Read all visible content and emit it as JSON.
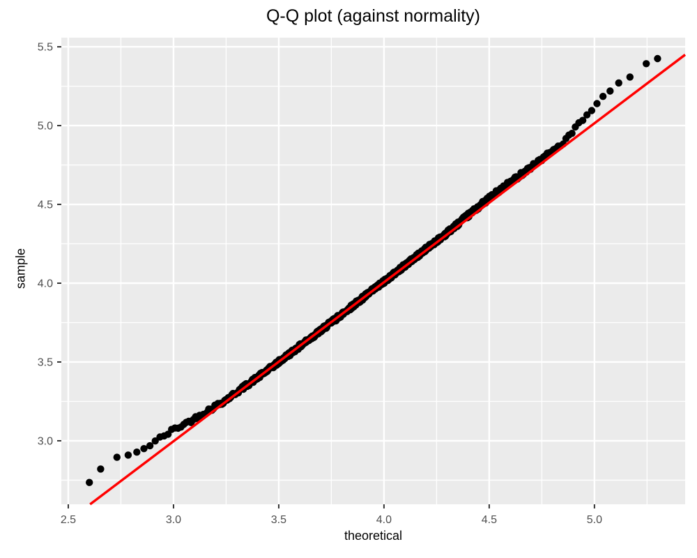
{
  "page": {
    "background": "#FFFFFF"
  },
  "chart_data": {
    "type": "scatter",
    "subtype": "qq-plot",
    "title": "Q-Q plot (against normality)",
    "xlabel": "theoretical",
    "ylabel": "sample",
    "x_ticks": [
      2.5,
      3.0,
      3.5,
      4.0,
      4.5,
      5.0
    ],
    "y_ticks": [
      3.0,
      3.5,
      4.0,
      4.5,
      5.0,
      5.5
    ],
    "x_minor_ticks": [
      2.75,
      3.25,
      3.75,
      4.25,
      4.75,
      5.25
    ],
    "y_minor_ticks": [
      2.75,
      3.25,
      3.75,
      4.25,
      4.75,
      5.25
    ],
    "xlim": [
      2.467,
      5.431
    ],
    "ylim": [
      2.597,
      5.558
    ],
    "grid": true,
    "legend": false,
    "panel_bg": "#EBEBEB",
    "grid_color": "#FFFFFF",
    "tick_color": "#333333",
    "tick_label_color": "#4D4D4D",
    "point_color": "#000000",
    "point_radius": 5.2,
    "ref_line": {
      "color": "#FF0000",
      "slope": 1.009,
      "intercept": -0.03,
      "stroke_width": 3.5
    },
    "n_points": 620,
    "theoretical_mean": 3.95,
    "theoretical_sd": 0.46,
    "jitter_sd_units": 0.013,
    "qq_curve": [
      [
        2.6,
        2.735
      ],
      [
        2.675,
        2.855
      ],
      [
        2.72,
        2.89
      ],
      [
        2.79,
        2.91
      ],
      [
        2.86,
        2.95
      ],
      [
        3.0,
        3.07
      ],
      [
        3.1,
        3.14
      ],
      [
        3.25,
        3.26
      ],
      [
        3.45,
        3.45
      ],
      [
        3.7,
        3.7
      ],
      [
        4.0,
        4.01
      ],
      [
        4.3,
        4.32
      ],
      [
        4.5,
        4.54
      ],
      [
        4.7,
        4.74
      ],
      [
        4.85,
        4.89
      ],
      [
        5.0,
        5.12
      ],
      [
        5.1,
        5.25
      ],
      [
        5.14,
        5.3
      ],
      [
        5.17,
        5.31
      ],
      [
        5.2,
        5.335
      ],
      [
        5.23,
        5.38
      ],
      [
        5.3,
        5.425
      ]
    ]
  }
}
